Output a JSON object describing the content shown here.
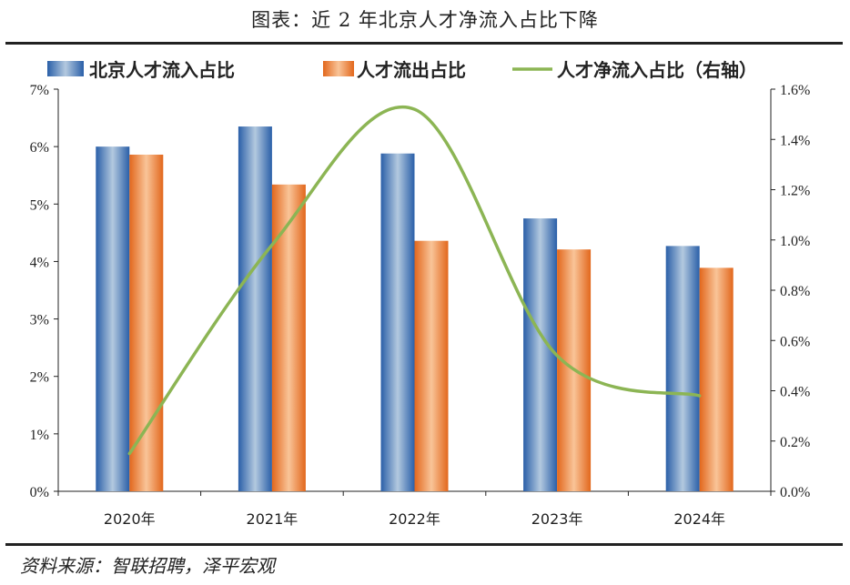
{
  "header": {
    "title": "图表：近 2 年北京人才净流入占比下降"
  },
  "footer": {
    "source": "资料来源：智联招聘，泽平宏观"
  },
  "colors": {
    "blue": "#2e6fb8",
    "orange": "#ec7a2a",
    "green": "#8cb554",
    "axis": "#222222"
  },
  "chart_data": {
    "type": "bar",
    "categories": [
      "2020年",
      "2021年",
      "2022年",
      "2023年",
      "2024年"
    ],
    "series": [
      {
        "name": "北京人才流入占比",
        "type": "bar",
        "axis": "left",
        "values": [
          6.0,
          6.35,
          5.88,
          4.75,
          4.27
        ]
      },
      {
        "name": "人才流出占比",
        "type": "bar",
        "axis": "left",
        "values": [
          5.86,
          5.34,
          4.36,
          4.21,
          3.89
        ]
      },
      {
        "name": "人才净流入占比（右轴）",
        "type": "line",
        "axis": "right",
        "values": [
          0.15,
          0.98,
          1.52,
          0.54,
          0.38
        ]
      }
    ],
    "y_left": {
      "ylim": [
        0,
        7
      ],
      "ticks": [
        "0%",
        "1%",
        "2%",
        "3%",
        "4%",
        "5%",
        "6%",
        "7%"
      ]
    },
    "y_right": {
      "ylim": [
        0,
        1.6
      ],
      "ticks": [
        "0.0%",
        "0.2%",
        "0.4%",
        "0.6%",
        "0.8%",
        "1.0%",
        "1.2%",
        "1.4%",
        "1.6%"
      ]
    },
    "legend_position": "top",
    "grid": false
  }
}
